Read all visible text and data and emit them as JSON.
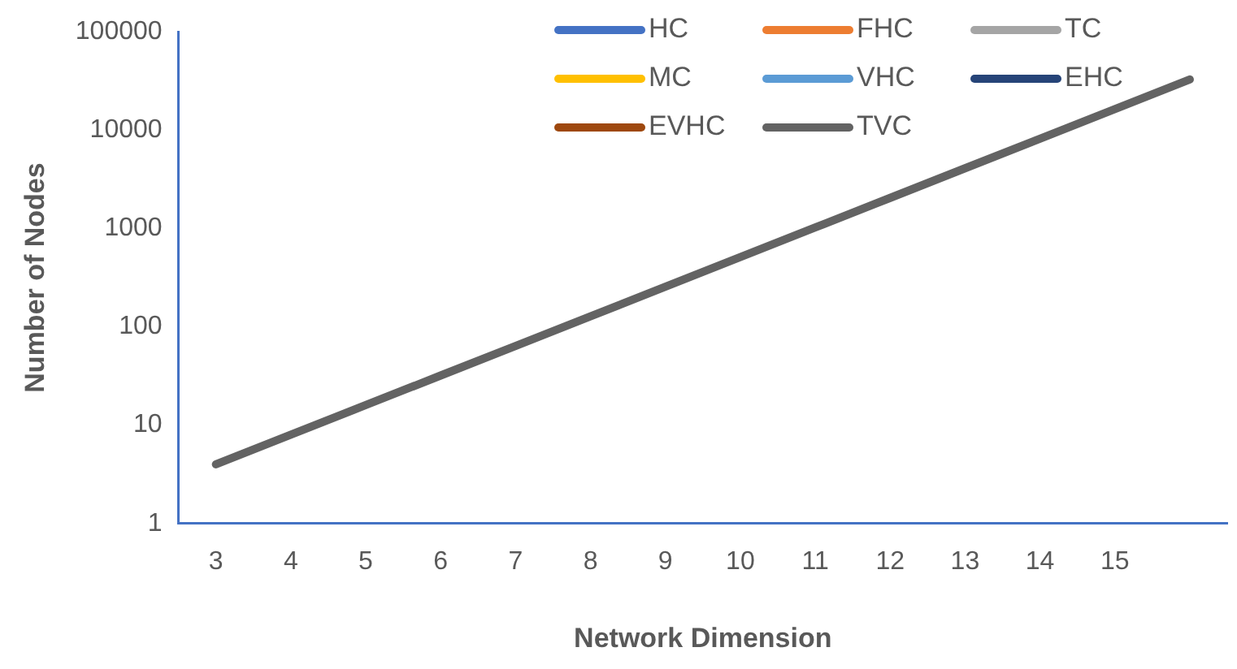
{
  "chart_data": {
    "type": "line",
    "xlabel": "Network Dimension",
    "ylabel": "Number of Nodes",
    "categories": [
      "3",
      "4",
      "5",
      "6",
      "7",
      "8",
      "9",
      "10",
      "11",
      "12",
      "13",
      "14",
      "15",
      null
    ],
    "series": [
      {
        "name": "HC",
        "color": "#4472c4",
        "values": [
          null,
          null,
          null,
          null,
          null,
          null,
          null,
          null,
          null,
          null,
          null,
          null,
          null,
          null
        ]
      },
      {
        "name": "FHC",
        "color": "#ed7d31",
        "values": [
          null,
          null,
          null,
          null,
          null,
          null,
          null,
          null,
          null,
          null,
          null,
          null,
          null,
          null
        ]
      },
      {
        "name": "TC",
        "color": "#a5a5a5",
        "values": [
          null,
          null,
          null,
          null,
          null,
          null,
          null,
          null,
          null,
          null,
          null,
          null,
          null,
          null
        ]
      },
      {
        "name": "MC",
        "color": "#ffc000",
        "values": [
          null,
          null,
          null,
          null,
          null,
          null,
          null,
          null,
          null,
          null,
          null,
          null,
          null,
          null
        ]
      },
      {
        "name": "VHC",
        "color": "#5b9bd5",
        "values": [
          null,
          null,
          null,
          null,
          null,
          null,
          null,
          null,
          null,
          null,
          null,
          null,
          null,
          null
        ]
      },
      {
        "name": "EHC",
        "color": "#264478",
        "values": [
          null,
          null,
          null,
          null,
          null,
          null,
          null,
          null,
          null,
          null,
          null,
          null,
          null,
          null
        ]
      },
      {
        "name": "EVHC",
        "color": "#9e480e",
        "values": [
          null,
          null,
          null,
          null,
          null,
          null,
          null,
          null,
          null,
          null,
          null,
          null,
          null,
          null
        ]
      },
      {
        "name": "TVC",
        "color": "#636363",
        "values": [
          4,
          8,
          16,
          32,
          64,
          128,
          256,
          512,
          1024,
          2048,
          4096,
          8192,
          16384,
          32768
        ]
      }
    ],
    "log": "y",
    "ylim": [
      1,
      100000
    ],
    "yticks": [
      1,
      10,
      100,
      1000,
      10000,
      100000
    ],
    "grid": false,
    "legend": "top right",
    "marker": "none",
    "line_style": "solid"
  }
}
